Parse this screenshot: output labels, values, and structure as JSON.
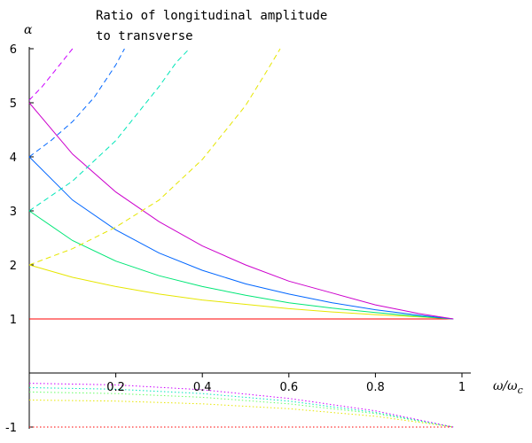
{
  "chart_data": {
    "type": "line",
    "title_lines": [
      "Ratio of longitudinal amplitude",
      "to transverse"
    ],
    "xlabel": "ω/ωc",
    "ylabel": "α",
    "xlim": [
      0,
      1
    ],
    "ylim": [
      -1,
      6
    ],
    "x_ticks": [
      0.2,
      0.4,
      0.6,
      0.8,
      1
    ],
    "x_tick_labels": [
      "0.2",
      "0.4",
      "0.6",
      "0.8",
      "1"
    ],
    "y_ticks": [
      -1,
      1,
      2,
      3,
      4,
      5,
      6
    ],
    "y_tick_labels": [
      "-1",
      "1",
      "2",
      "3",
      "4",
      "5",
      "6"
    ],
    "grid": false,
    "colors": {
      "red": "#ff0000",
      "yellow": "#e6e600",
      "green": "#00e676",
      "blue": "#0066ff",
      "magenta": "#cc00cc",
      "cyan": "#00e6b8",
      "orchid": "#cc00ff",
      "lightgreen": "#66ff66"
    },
    "series": [
      {
        "color": "#ff0000",
        "style": "solid",
        "x": [
          0,
          0.98
        ],
        "y": [
          1,
          1
        ]
      },
      {
        "color": "#e6e600",
        "style": "solid",
        "x": [
          0,
          0.1,
          0.2,
          0.3,
          0.4,
          0.5,
          0.6,
          0.7,
          0.8,
          0.9,
          0.98
        ],
        "y": [
          2,
          1.77,
          1.6,
          1.46,
          1.35,
          1.27,
          1.19,
          1.13,
          1.08,
          1.04,
          1
        ]
      },
      {
        "color": "#00e676",
        "style": "solid",
        "x": [
          0,
          0.1,
          0.2,
          0.3,
          0.4,
          0.5,
          0.6,
          0.7,
          0.8,
          0.9,
          0.98
        ],
        "y": [
          3,
          2.45,
          2.07,
          1.8,
          1.6,
          1.44,
          1.3,
          1.2,
          1.12,
          1.05,
          1
        ]
      },
      {
        "color": "#0066ff",
        "style": "solid",
        "x": [
          0,
          0.1,
          0.2,
          0.3,
          0.4,
          0.5,
          0.6,
          0.7,
          0.8,
          0.9,
          0.98
        ],
        "y": [
          4,
          3.2,
          2.65,
          2.22,
          1.9,
          1.65,
          1.46,
          1.3,
          1.17,
          1.07,
          1
        ]
      },
      {
        "color": "#cc00cc",
        "style": "solid",
        "x": [
          0,
          0.1,
          0.2,
          0.3,
          0.4,
          0.5,
          0.6,
          0.7,
          0.8,
          0.9,
          0.98
        ],
        "y": [
          5,
          4.05,
          3.35,
          2.8,
          2.35,
          2.0,
          1.7,
          1.48,
          1.26,
          1.1,
          1
        ]
      },
      {
        "color": "#e6e600",
        "style": "dashed",
        "x": [
          0,
          0.1,
          0.2,
          0.3,
          0.4,
          0.5,
          0.55,
          0.58
        ],
        "y": [
          2,
          2.3,
          2.7,
          3.2,
          3.95,
          4.95,
          5.6,
          6
        ]
      },
      {
        "color": "#00e6b8",
        "style": "dashed",
        "x": [
          0,
          0.1,
          0.2,
          0.3,
          0.34,
          0.37
        ],
        "y": [
          3,
          3.55,
          4.3,
          5.3,
          5.75,
          6
        ]
      },
      {
        "color": "#0066ff",
        "style": "dashed",
        "x": [
          0,
          0.05,
          0.1,
          0.15,
          0.2,
          0.22
        ],
        "y": [
          4,
          4.3,
          4.65,
          5.1,
          5.7,
          6
        ]
      },
      {
        "color": "#cc00ff",
        "style": "dashed",
        "x": [
          0,
          0.03,
          0.06,
          0.09,
          0.1
        ],
        "y": [
          5.05,
          5.3,
          5.6,
          5.9,
          6
        ]
      },
      {
        "color": "#ff0000",
        "style": "dotted",
        "x": [
          0,
          0.98
        ],
        "y": [
          -1,
          -1
        ]
      },
      {
        "color": "#e6e600",
        "style": "dotted",
        "x": [
          0,
          0.2,
          0.4,
          0.6,
          0.8,
          0.98
        ],
        "y": [
          -0.5,
          -0.52,
          -0.57,
          -0.66,
          -0.8,
          -1
        ]
      },
      {
        "color": "#66ff66",
        "style": "dotted",
        "x": [
          0,
          0.2,
          0.4,
          0.6,
          0.8,
          0.98
        ],
        "y": [
          -0.35,
          -0.38,
          -0.45,
          -0.57,
          -0.75,
          -1
        ]
      },
      {
        "color": "#00e6b8",
        "style": "dotted",
        "x": [
          0,
          0.2,
          0.4,
          0.6,
          0.8,
          0.98
        ],
        "y": [
          -0.27,
          -0.3,
          -0.38,
          -0.52,
          -0.73,
          -1
        ]
      },
      {
        "color": "#cc00ff",
        "style": "dotted",
        "x": [
          0,
          0.2,
          0.4,
          0.6,
          0.8,
          0.98
        ],
        "y": [
          -0.19,
          -0.22,
          -0.31,
          -0.47,
          -0.7,
          -1
        ]
      }
    ]
  }
}
